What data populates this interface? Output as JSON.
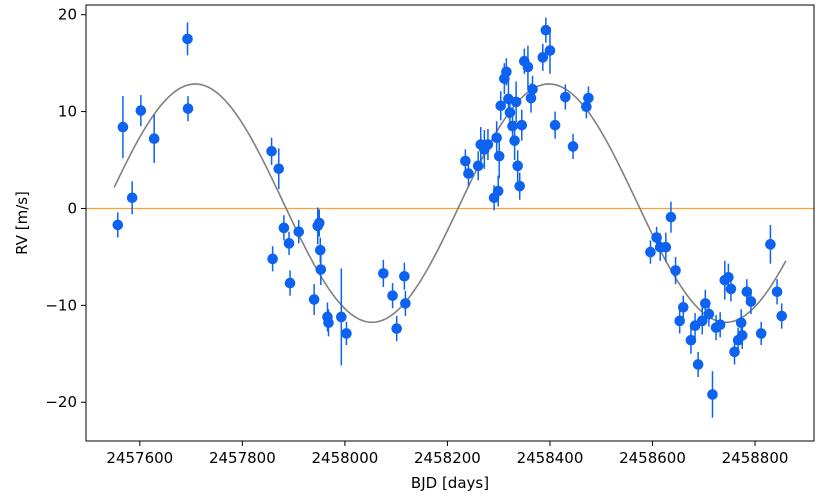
{
  "chart_data": {
    "type": "scatter",
    "title": "",
    "xlabel": "BJD [days]",
    "ylabel": "RV [m/s]",
    "xlim": [
      2457495,
      2458915
    ],
    "ylim": [
      -24,
      21
    ],
    "grid": false,
    "x_ticks": [
      2457600,
      2457800,
      2458000,
      2458200,
      2458400,
      2458600,
      2458800
    ],
    "y_ticks": [
      -20,
      -10,
      0,
      10,
      20
    ],
    "x_tick_labels": [
      "2457600",
      "2457800",
      "2458000",
      "2458200",
      "2458400",
      "2458600",
      "2458800"
    ],
    "y_tick_labels": [
      "−20",
      "−10",
      "0",
      "10",
      "20"
    ],
    "colors": {
      "points": "#0d63f0",
      "errorbars": "#0d63f0",
      "model": "#808080",
      "zero_line": "#ffa030"
    },
    "reference_line": {
      "y": 0
    },
    "model": {
      "type": "sinusoid",
      "amplitude": 12.3,
      "offset": 0.55,
      "period": 690,
      "peak_x": 2457708,
      "x_range": [
        2457550,
        2458860
      ]
    },
    "points": [
      {
        "x": 2457557,
        "y": -1.7,
        "err": 1.3
      },
      {
        "x": 2457567,
        "y": 8.4,
        "err": 3.2
      },
      {
        "x": 2457585,
        "y": 1.1,
        "err": 1.7
      },
      {
        "x": 2457602,
        "y": 10.1,
        "err": 1.6
      },
      {
        "x": 2457628,
        "y": 7.2,
        "err": 2.5
      },
      {
        "x": 2457693,
        "y": 17.5,
        "err": 1.7
      },
      {
        "x": 2457694,
        "y": 10.3,
        "err": 1.3
      },
      {
        "x": 2457857,
        "y": 5.9,
        "err": 1.4
      },
      {
        "x": 2457859,
        "y": -5.2,
        "err": 1.3
      },
      {
        "x": 2457871,
        "y": 4.1,
        "err": 2.1
      },
      {
        "x": 2457881,
        "y": -2.0,
        "err": 1.3
      },
      {
        "x": 2457891,
        "y": -3.6,
        "err": 1.2
      },
      {
        "x": 2457893,
        "y": -7.7,
        "err": 1.3
      },
      {
        "x": 2457910,
        "y": -2.4,
        "err": 1.2
      },
      {
        "x": 2457940,
        "y": -9.4,
        "err": 1.6
      },
      {
        "x": 2457947,
        "y": -1.8,
        "err": 1.9
      },
      {
        "x": 2457950,
        "y": -1.5,
        "err": 1.4
      },
      {
        "x": 2457952,
        "y": -4.3,
        "err": 1.3
      },
      {
        "x": 2457953,
        "y": -6.3,
        "err": 1.6
      },
      {
        "x": 2457966,
        "y": -11.2,
        "err": 1.5
      },
      {
        "x": 2457968,
        "y": -11.8,
        "err": 1.4
      },
      {
        "x": 2457993,
        "y": -11.2,
        "err": 5.0
      },
      {
        "x": 2458003,
        "y": -12.9,
        "err": 1.2
      },
      {
        "x": 2458075,
        "y": -6.7,
        "err": 1.4
      },
      {
        "x": 2458093,
        "y": -9.0,
        "err": 1.3
      },
      {
        "x": 2458101,
        "y": -12.4,
        "err": 1.3
      },
      {
        "x": 2458116,
        "y": -7.0,
        "err": 1.4
      },
      {
        "x": 2458118,
        "y": -9.8,
        "err": 1.3
      },
      {
        "x": 2458235,
        "y": 4.9,
        "err": 1.2
      },
      {
        "x": 2458241,
        "y": 3.6,
        "err": 1.3
      },
      {
        "x": 2458260,
        "y": 4.4,
        "err": 1.5
      },
      {
        "x": 2458265,
        "y": 6.6,
        "err": 1.8
      },
      {
        "x": 2458272,
        "y": 6.1,
        "err": 2.0
      },
      {
        "x": 2458279,
        "y": 6.6,
        "err": 1.6
      },
      {
        "x": 2458291,
        "y": 1.1,
        "err": 1.3
      },
      {
        "x": 2458296,
        "y": 7.3,
        "err": 1.7
      },
      {
        "x": 2458299,
        "y": 1.8,
        "err": 1.6
      },
      {
        "x": 2458301,
        "y": 5.4,
        "err": 2.3
      },
      {
        "x": 2458304,
        "y": 10.6,
        "err": 1.5
      },
      {
        "x": 2458311,
        "y": 13.4,
        "err": 1.6
      },
      {
        "x": 2458315,
        "y": 14.1,
        "err": 1.4
      },
      {
        "x": 2458319,
        "y": 11.3,
        "err": 2.0
      },
      {
        "x": 2458322,
        "y": 9.9,
        "err": 1.8
      },
      {
        "x": 2458327,
        "y": 8.5,
        "err": 1.6
      },
      {
        "x": 2458331,
        "y": 7.0,
        "err": 2.0
      },
      {
        "x": 2458334,
        "y": 11.0,
        "err": 2.1
      },
      {
        "x": 2458337,
        "y": 4.4,
        "err": 1.6
      },
      {
        "x": 2458341,
        "y": 2.3,
        "err": 1.4
      },
      {
        "x": 2458345,
        "y": 8.6,
        "err": 1.6
      },
      {
        "x": 2458350,
        "y": 15.2,
        "err": 1.3
      },
      {
        "x": 2458357,
        "y": 14.6,
        "err": 2.2
      },
      {
        "x": 2458363,
        "y": 11.4,
        "err": 1.5
      },
      {
        "x": 2458366,
        "y": 12.3,
        "err": 1.4
      },
      {
        "x": 2458386,
        "y": 15.6,
        "err": 1.4
      },
      {
        "x": 2458392,
        "y": 18.4,
        "err": 1.3
      },
      {
        "x": 2458400,
        "y": 16.3,
        "err": 2.4
      },
      {
        "x": 2458410,
        "y": 8.6,
        "err": 1.4
      },
      {
        "x": 2458430,
        "y": 11.5,
        "err": 1.3
      },
      {
        "x": 2458445,
        "y": 6.4,
        "err": 1.3
      },
      {
        "x": 2458471,
        "y": 10.5,
        "err": 1.2
      },
      {
        "x": 2458475,
        "y": 11.4,
        "err": 1.2
      },
      {
        "x": 2458596,
        "y": -4.5,
        "err": 1.2
      },
      {
        "x": 2458608,
        "y": -3.0,
        "err": 1.1
      },
      {
        "x": 2458615,
        "y": -4.0,
        "err": 1.4
      },
      {
        "x": 2458626,
        "y": -4.0,
        "err": 1.5
      },
      {
        "x": 2458636,
        "y": -0.9,
        "err": 1.6
      },
      {
        "x": 2458645,
        "y": -6.4,
        "err": 1.4
      },
      {
        "x": 2458653,
        "y": -11.6,
        "err": 1.3
      },
      {
        "x": 2458660,
        "y": -10.2,
        "err": 1.2
      },
      {
        "x": 2458675,
        "y": -13.6,
        "err": 1.4
      },
      {
        "x": 2458683,
        "y": -12.1,
        "err": 1.3
      },
      {
        "x": 2458689,
        "y": -16.1,
        "err": 1.3
      },
      {
        "x": 2458697,
        "y": -11.6,
        "err": 1.4
      },
      {
        "x": 2458703,
        "y": -9.8,
        "err": 1.4
      },
      {
        "x": 2458710,
        "y": -10.9,
        "err": 1.3
      },
      {
        "x": 2458717,
        "y": -19.2,
        "err": 2.4
      },
      {
        "x": 2458724,
        "y": -12.3,
        "err": 1.3
      },
      {
        "x": 2458732,
        "y": -12.0,
        "err": 1.3
      },
      {
        "x": 2458741,
        "y": -7.4,
        "err": 2.0
      },
      {
        "x": 2458748,
        "y": -7.1,
        "err": 1.4
      },
      {
        "x": 2458753,
        "y": -8.3,
        "err": 1.3
      },
      {
        "x": 2458760,
        "y": -14.8,
        "err": 1.3
      },
      {
        "x": 2458767,
        "y": -13.6,
        "err": 1.3
      },
      {
        "x": 2458773,
        "y": -11.8,
        "err": 1.4
      },
      {
        "x": 2458775,
        "y": -13.1,
        "err": 1.4
      },
      {
        "x": 2458784,
        "y": -8.6,
        "err": 1.3
      },
      {
        "x": 2458792,
        "y": -9.6,
        "err": 1.3
      },
      {
        "x": 2458812,
        "y": -12.9,
        "err": 1.2
      },
      {
        "x": 2458830,
        "y": -3.7,
        "err": 2.0
      },
      {
        "x": 2458843,
        "y": -8.6,
        "err": 1.3
      },
      {
        "x": 2458852,
        "y": -11.1,
        "err": 1.3
      }
    ]
  }
}
